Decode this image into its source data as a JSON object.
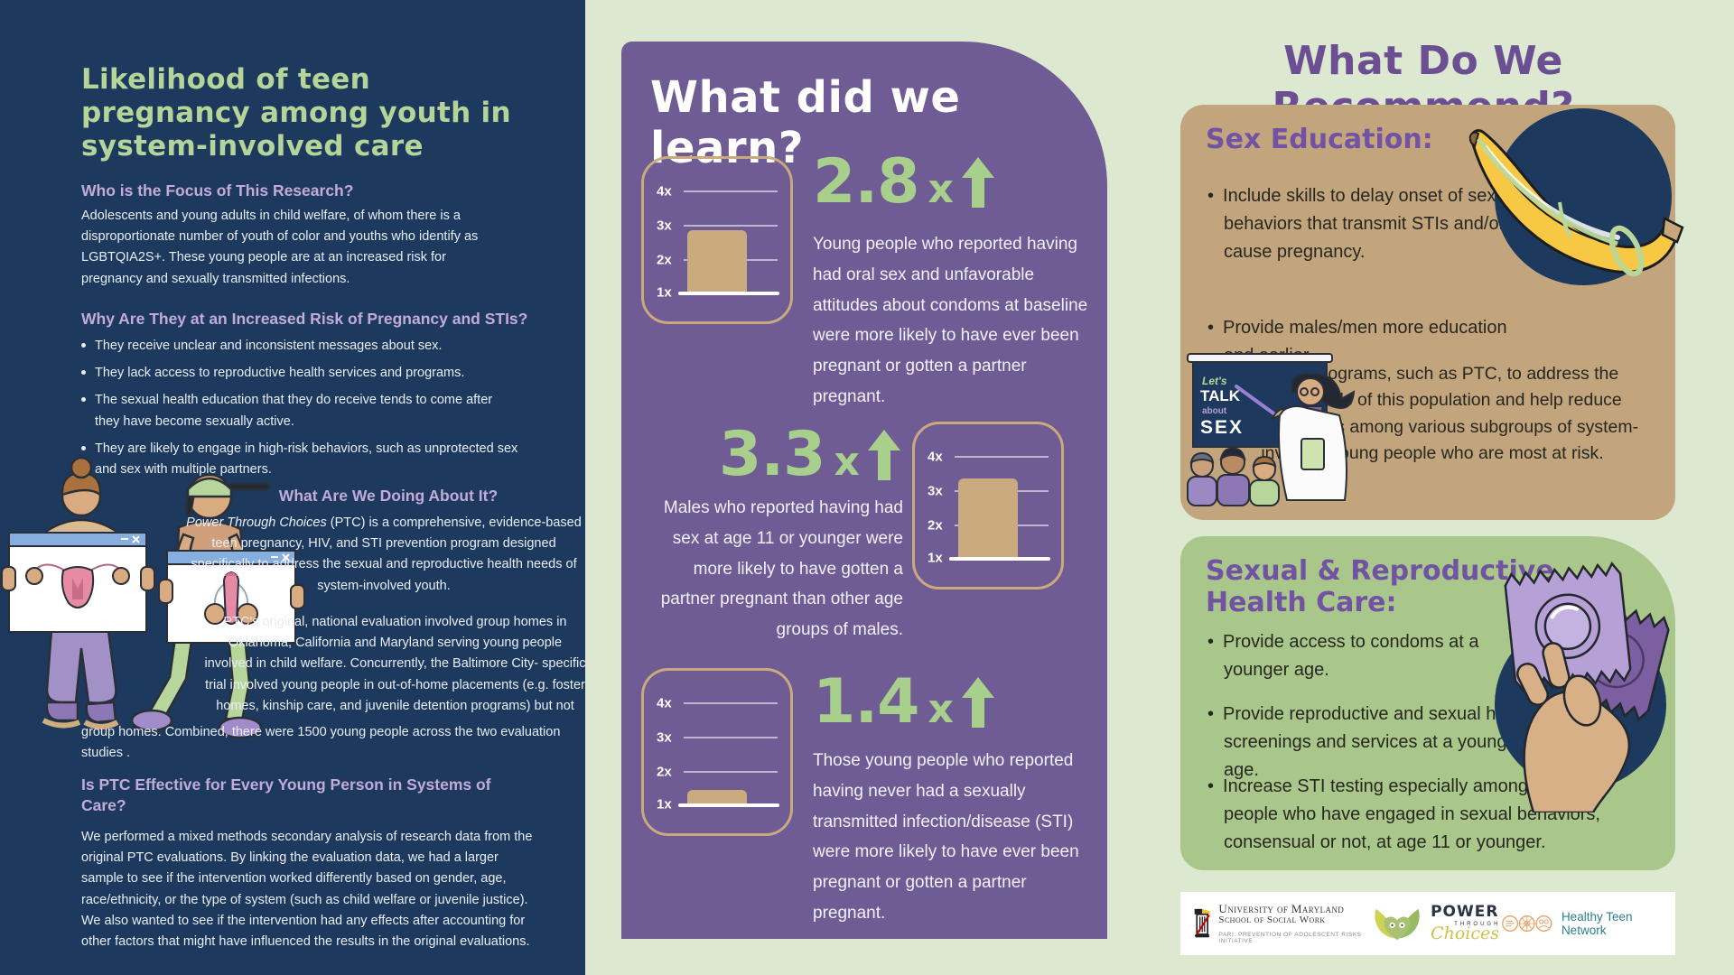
{
  "colors": {
    "navy": "#1d3a5e",
    "purple_panel": "#6f5c94",
    "background_green": "#dde8d1",
    "tan_card": "#c2a57c",
    "green_card": "#a9c78b",
    "accent_green_text": "#a9cf8c",
    "lavender_heading": "#c3abd8",
    "purple_heading": "#6b4f92",
    "bar_tan": "#c9ab7f"
  },
  "left_panel": {
    "title": "Likelihood of teen\npregnancy among youth in\nsystem-involved care",
    "focus_heading": "Who is the Focus of This Research?",
    "focus_body": "Adolescents and young adults in child welfare, of whom there is a disproportionate number of youth of color and youths who identify as LGBTQIA2S+. These young people are at an increased risk for pregnancy and sexually transmitted infections.",
    "risk_heading": "Why Are They at an Increased Risk of Pregnancy and STIs?",
    "risk_bullets": [
      "They receive unclear and inconsistent messages about sex.",
      "They lack access to reproductive health services and programs.",
      "The sexual health education that they do receive tends to come after they have become sexually active.",
      "They are likely to engage in high-risk behaviors, such as unprotected sex and sex with multiple partners."
    ],
    "doing_heading": "What Are We Doing About It?",
    "doing_italic": "Power Through Choices",
    "doing_rest": " (PTC) is a comprehensive, evidence-based teen pregnancy, HIV, and STI prevention program designed specifically to address the sexual and reproductive health needs of system-involved youth.",
    "evaluation_p1": "PTC's original, national evaluation involved group homes in Oklahoma, California and Maryland serving young people involved in child welfare. Concurrently, the Baltimore City- specific trial involved young people in out-of-home placements (e.g. foster homes, kinship care, and juvenile detention programs) but not",
    "evaluation_p2": "group homes. Combined, there were 1500 young people across the two evaluation studies .",
    "effective_heading": "Is PTC Effective for Every Young Person in Systems of Care?",
    "effective_body": "We performed a mixed methods secondary analysis of research data from the original PTC evaluations. By linking the evaluation data, we had a larger sample to see if the intervention worked differently based on gender, age, race/ethnicity, or the type of system (such as child welfare or juvenile justice). We also wanted to see if the intervention had any effects after accounting for other factors that might have influenced the results in the original evaluations."
  },
  "middle_panel": {
    "title": "What did we learn?",
    "stats": [
      {
        "value": "2.8",
        "multiplier": "x",
        "description": "Young people who reported having had oral sex and unfavorable attitudes about condoms at baseline were more likely to have ever been pregnant or gotten a partner pregnant."
      },
      {
        "value": "3.3",
        "multiplier": "x",
        "description": "Males who reported having had sex at age 11 or younger were more likely to have gotten a partner pregnant than other age groups of males."
      },
      {
        "value": "1.4",
        "multiplier": "x",
        "description": "Those young people who reported having never had a sexually transmitted infection/disease (STI) were more likely to have ever been pregnant or gotten a partner pregnant."
      }
    ]
  },
  "chart_data": [
    {
      "type": "bar",
      "annotation": "2.8x increase",
      "values": [
        2.8
      ],
      "ytick_labels": [
        "4x",
        "3x",
        "2x",
        "1x"
      ],
      "ylim": [
        1,
        4.4
      ],
      "grid": true,
      "bar_color": "#c9ab7f"
    },
    {
      "type": "bar",
      "annotation": "3.3x increase",
      "values": [
        3.3
      ],
      "ytick_labels": [
        "4x",
        "3x",
        "2x",
        "1x"
      ],
      "ylim": [
        1,
        4.4
      ],
      "grid": true,
      "bar_color": "#c9ab7f"
    },
    {
      "type": "bar",
      "annotation": "1.4x increase",
      "values": [
        1.4
      ],
      "ytick_labels": [
        "4x",
        "3x",
        "2x",
        "1x"
      ],
      "ylim": [
        1,
        4.4
      ],
      "grid": true,
      "bar_color": "#c9ab7f"
    }
  ],
  "right_panel": {
    "title": "What Do We Recommend?",
    "sex_education": {
      "heading": "Sex Education:",
      "bullets": [
        "Include skills to delay onset of sexual behaviors that transmit STIs and/or cause pregnancy.",
        "Provide males/men more education and earlier.",
        "Adapt programs, such as PTC, to address the diverse needs of this population and help reduce birth disparities among various subgroups of system-involved young people who are most at risk."
      ]
    },
    "health_care": {
      "heading": "Sexual & Reproductive Health Care:",
      "bullets": [
        "Provide access to condoms at a younger age.",
        "Provide reproductive and sexual health screenings and services at a younger age.",
        "Increase STI testing especially among young people who have engaged in sexual behaviors, consensual or not, at age 11 or younger."
      ]
    },
    "blackboard": {
      "line1": "Let's",
      "line2": "TALK",
      "line3": "about",
      "line4": "SEX"
    },
    "logos": {
      "umd_line1": "University of Maryland",
      "umd_line2": "School of Social Work",
      "umd_line3": "PARI: PREVENTION OF ADOLESCENT RISKS INITIATIVE",
      "ptc_word1": "POWER",
      "ptc_word2": "THROUGH",
      "ptc_word3": "Choices",
      "htn_name": "Healthy Teen Network"
    }
  }
}
